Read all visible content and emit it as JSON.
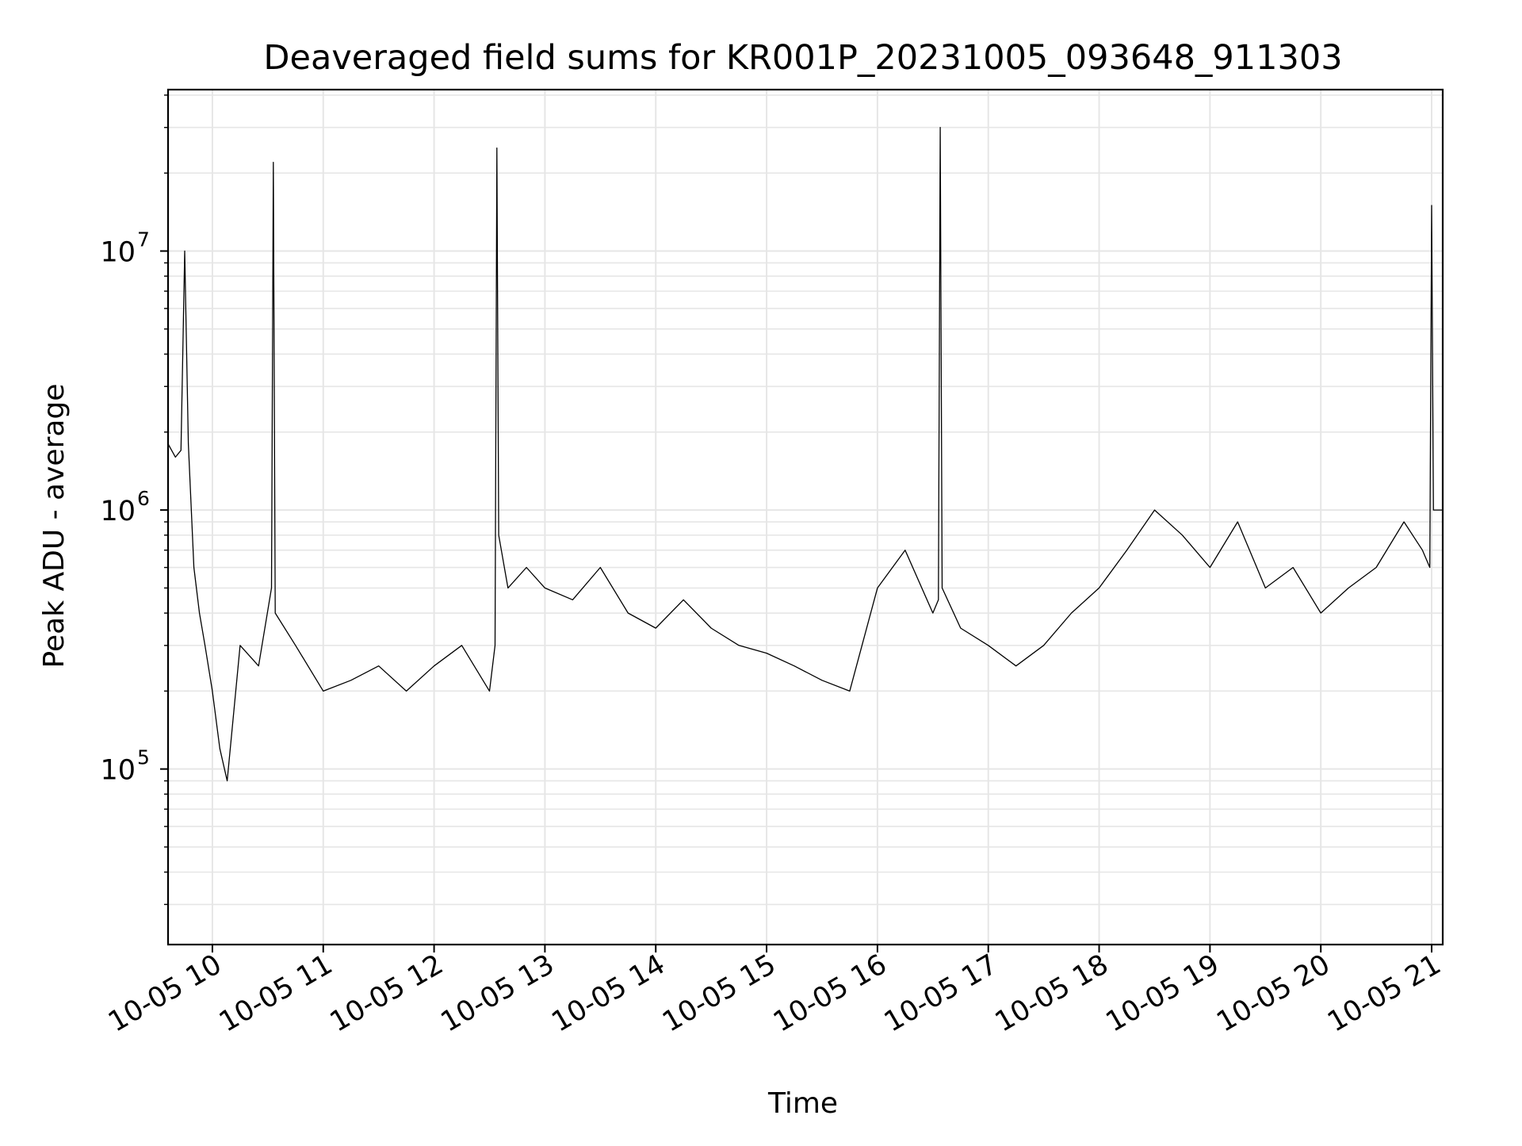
{
  "chart_data": {
    "type": "line",
    "title": "Deaveraged field sums for KR001P_20231005_093648_911303",
    "xlabel": "Time",
    "ylabel": "Peak ADU - average",
    "yscale": "log",
    "xlim": [
      "2023-10-05 09:36",
      "2023-10-05 21:06"
    ],
    "ylim": [
      21000,
      42000000
    ],
    "x_tick_labels": [
      "10-05 10",
      "10-05 11",
      "10-05 12",
      "10-05 13",
      "10-05 14",
      "10-05 15",
      "10-05 16",
      "10-05 17",
      "10-05 18",
      "10-05 19",
      "10-05 20",
      "10-05 21"
    ],
    "y_tick_labels": [
      {
        "base": "10",
        "exp": "5",
        "value": 100000
      },
      {
        "base": "10",
        "exp": "6",
        "value": 1000000
      },
      {
        "base": "10",
        "exp": "7",
        "value": 10000000
      }
    ],
    "grid": true,
    "line_color": "#000000",
    "series": [
      {
        "x": [
          "2023-10-05 09:36",
          "2023-10-05 09:40",
          "2023-10-05 09:43",
          "2023-10-05 09:45",
          "2023-10-05 09:47",
          "2023-10-05 09:50",
          "2023-10-05 09:53",
          "2023-10-05 09:56",
          "2023-10-05 10:00",
          "2023-10-05 10:04",
          "2023-10-05 10:08",
          "2023-10-05 10:15",
          "2023-10-05 10:25",
          "2023-10-05 10:32",
          "2023-10-05 10:33",
          "2023-10-05 10:34",
          "2023-10-05 10:45",
          "2023-10-05 11:00",
          "2023-10-05 11:15",
          "2023-10-05 11:30",
          "2023-10-05 11:45",
          "2023-10-05 12:00",
          "2023-10-05 12:15",
          "2023-10-05 12:30",
          "2023-10-05 12:33",
          "2023-10-05 12:34",
          "2023-10-05 12:35",
          "2023-10-05 12:40",
          "2023-10-05 12:50",
          "2023-10-05 13:00",
          "2023-10-05 13:15",
          "2023-10-05 13:30",
          "2023-10-05 13:45",
          "2023-10-05 14:00",
          "2023-10-05 14:15",
          "2023-10-05 14:30",
          "2023-10-05 14:45",
          "2023-10-05 15:00",
          "2023-10-05 15:15",
          "2023-10-05 15:30",
          "2023-10-05 15:45",
          "2023-10-05 16:00",
          "2023-10-05 16:15",
          "2023-10-05 16:30",
          "2023-10-05 16:33",
          "2023-10-05 16:34",
          "2023-10-05 16:35",
          "2023-10-05 16:45",
          "2023-10-05 17:00",
          "2023-10-05 17:15",
          "2023-10-05 17:30",
          "2023-10-05 17:45",
          "2023-10-05 18:00",
          "2023-10-05 18:15",
          "2023-10-05 18:30",
          "2023-10-05 18:45",
          "2023-10-05 19:00",
          "2023-10-05 19:15",
          "2023-10-05 19:30",
          "2023-10-05 19:45",
          "2023-10-05 20:00",
          "2023-10-05 20:15",
          "2023-10-05 20:30",
          "2023-10-05 20:45",
          "2023-10-05 20:55",
          "2023-10-05 20:59",
          "2023-10-05 21:00",
          "2023-10-05 21:01",
          "2023-10-05 21:06"
        ],
        "y": [
          1800000,
          1600000,
          1700000,
          10000000,
          1800000,
          600000,
          400000,
          300000,
          200000,
          120000,
          90000,
          300000,
          250000,
          500000,
          22000000,
          400000,
          300000,
          200000,
          220000,
          250000,
          200000,
          250000,
          300000,
          200000,
          300000,
          25000000,
          800000,
          500000,
          600000,
          500000,
          450000,
          600000,
          400000,
          350000,
          450000,
          350000,
          300000,
          280000,
          250000,
          220000,
          200000,
          500000,
          700000,
          400000,
          450000,
          30000000,
          500000,
          350000,
          300000,
          250000,
          300000,
          400000,
          500000,
          700000,
          1000000,
          800000,
          600000,
          900000,
          500000,
          600000,
          400000,
          500000,
          600000,
          900000,
          700000,
          600000,
          15000000,
          1000000,
          1000000
        ]
      }
    ]
  }
}
